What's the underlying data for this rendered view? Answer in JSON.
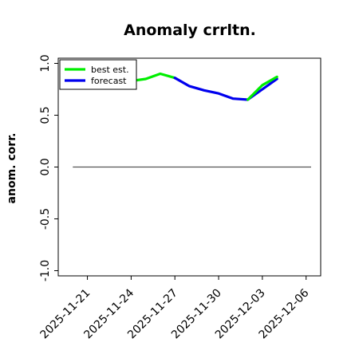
{
  "chart_data": {
    "type": "line",
    "title": "Anomaly crrltn.",
    "xlabel": "",
    "ylabel": "anom. corr.",
    "ylim": [
      -1.05,
      1.05
    ],
    "xlim": [
      "2025-11-19",
      "2025-12-07"
    ],
    "yticks": [
      -1.0,
      -0.5,
      0.0,
      0.5,
      1.0
    ],
    "ytick_labels": [
      "-1.0",
      "-0.5",
      "0.0",
      "0.5",
      "1.0"
    ],
    "xticks": [
      "2025-11-21",
      "2025-11-24",
      "2025-11-27",
      "2025-11-30",
      "2025-12-03",
      "2025-12-06"
    ],
    "xtick_labels": [
      "2025-11-21",
      "2025-11-24",
      "2025-11-27",
      "2025-11-30",
      "2025-12-03",
      "2025-12-06"
    ],
    "highlighted_xtick": "2025-11-27",
    "highlight_color": "#228b22",
    "grid": false,
    "legend_position": "top-left",
    "reference_line": {
      "y": 0.0,
      "color": "#555555"
    },
    "series": [
      {
        "name": "best est.",
        "color": "#00ee00",
        "x": [
          "2025-11-22",
          "2025-11-23",
          "2025-11-24",
          "2025-11-25",
          "2025-11-26",
          "2025-11-27"
        ],
        "y": [
          0.76,
          0.78,
          0.83,
          0.85,
          0.9,
          0.86
        ]
      },
      {
        "name": "forecast",
        "color": "#0000ee",
        "x": [
          "2025-11-27",
          "2025-11-28",
          "2025-11-29",
          "2025-11-30",
          "2025-12-01",
          "2025-12-02",
          "2025-12-03",
          "2025-12-04"
        ],
        "y": [
          0.86,
          0.78,
          0.74,
          0.71,
          0.66,
          0.65,
          0.75,
          0.85
        ]
      },
      {
        "name": "",
        "color": "#00ee00",
        "x": [
          "2025-12-02",
          "2025-12-03",
          "2025-12-04"
        ],
        "y": [
          0.65,
          0.79,
          0.87
        ]
      }
    ]
  }
}
